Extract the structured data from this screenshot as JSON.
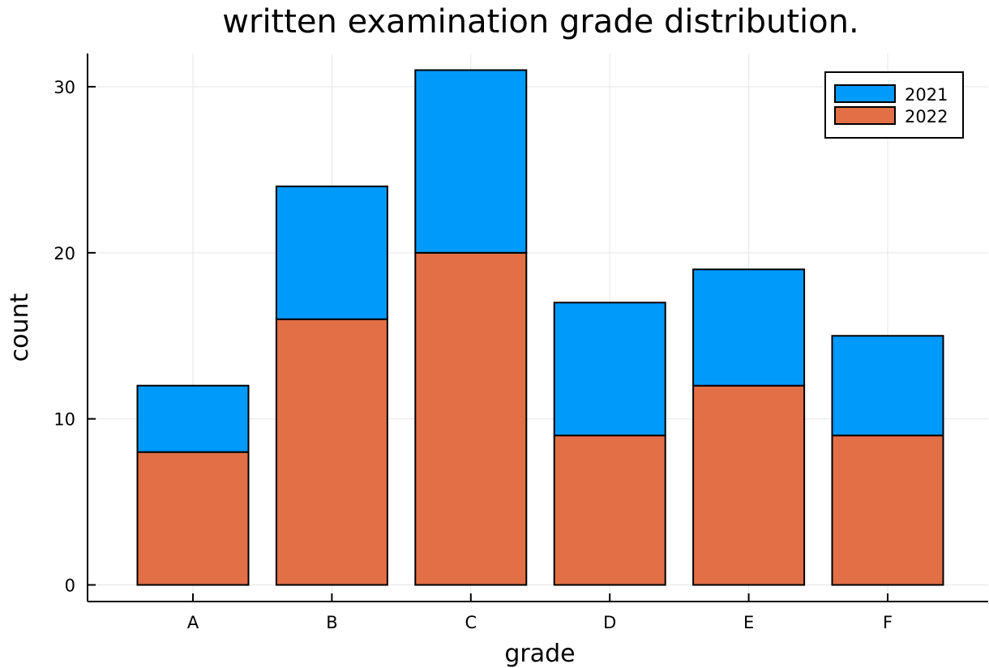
{
  "chart_data": {
    "type": "bar",
    "stacked": true,
    "title": "written examination grade distribution.",
    "xlabel": "grade",
    "ylabel": "count",
    "categories": [
      "A",
      "B",
      "C",
      "D",
      "E",
      "F"
    ],
    "series": [
      {
        "name": "2021",
        "color": "#009AFA",
        "values": [
          4,
          8,
          11,
          8,
          7,
          6
        ]
      },
      {
        "name": "2022",
        "color": "#E26F46",
        "values": [
          8,
          16,
          20,
          9,
          12,
          9
        ]
      }
    ],
    "stack_order_bottom_to_top": [
      "2022",
      "2021"
    ],
    "totals": [
      12,
      24,
      31,
      17,
      19,
      15
    ],
    "ylim": [
      -1,
      32
    ],
    "yticks": [
      0,
      10,
      20,
      30
    ],
    "grid": true,
    "legend_position": "top-right"
  }
}
